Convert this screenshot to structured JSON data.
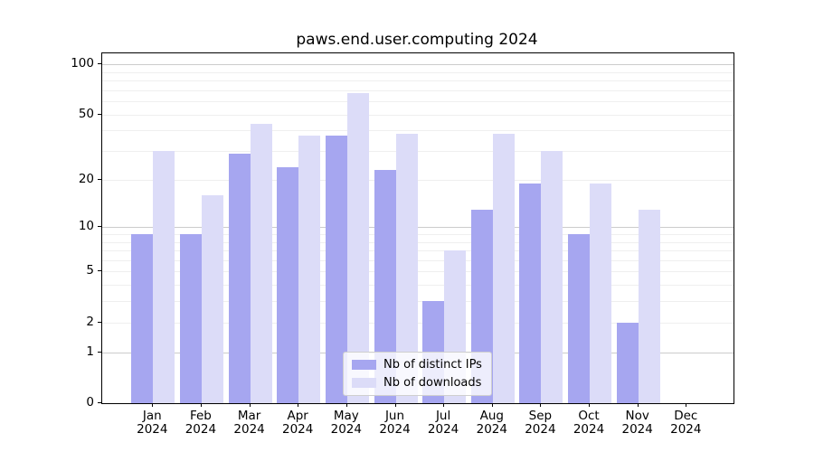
{
  "chart_data": {
    "type": "bar",
    "title": "paws.end.user.computing 2024",
    "categories": [
      "Jan",
      "Feb",
      "Mar",
      "Apr",
      "May",
      "Jun",
      "Jul",
      "Aug",
      "Sep",
      "Oct",
      "Nov",
      "Dec"
    ],
    "x_tick_year_line": "2024",
    "series": [
      {
        "name": "Nb of distinct IPs",
        "color": "#a6a6f0",
        "values": [
          9,
          9,
          29,
          24,
          37,
          23,
          3,
          13,
          19,
          9,
          2,
          0
        ]
      },
      {
        "name": "Nb of downloads",
        "color": "#dcdcf8",
        "values": [
          30,
          16,
          44,
          37,
          67,
          38,
          7,
          38,
          30,
          19,
          13,
          0
        ]
      }
    ],
    "y_axis": {
      "scale": "log1p",
      "tick_values": [
        0,
        1,
        2,
        5,
        10,
        20,
        50,
        100
      ],
      "major_gridlines": [
        1,
        10,
        100
      ],
      "minor_gridlines": [
        2,
        3,
        4,
        5,
        6,
        7,
        8,
        9,
        20,
        30,
        40,
        50,
        60,
        70,
        80,
        90
      ],
      "ylim": [
        0,
        116
      ]
    },
    "legend": {
      "position": "lower center",
      "entries": [
        "Nb of distinct IPs",
        "Nb of downloads"
      ]
    },
    "colors": {
      "background": "#ffffff",
      "axis": "#000000",
      "major_grid": "#cccccc",
      "minor_grid": "#efefef",
      "text": "#000000"
    }
  }
}
